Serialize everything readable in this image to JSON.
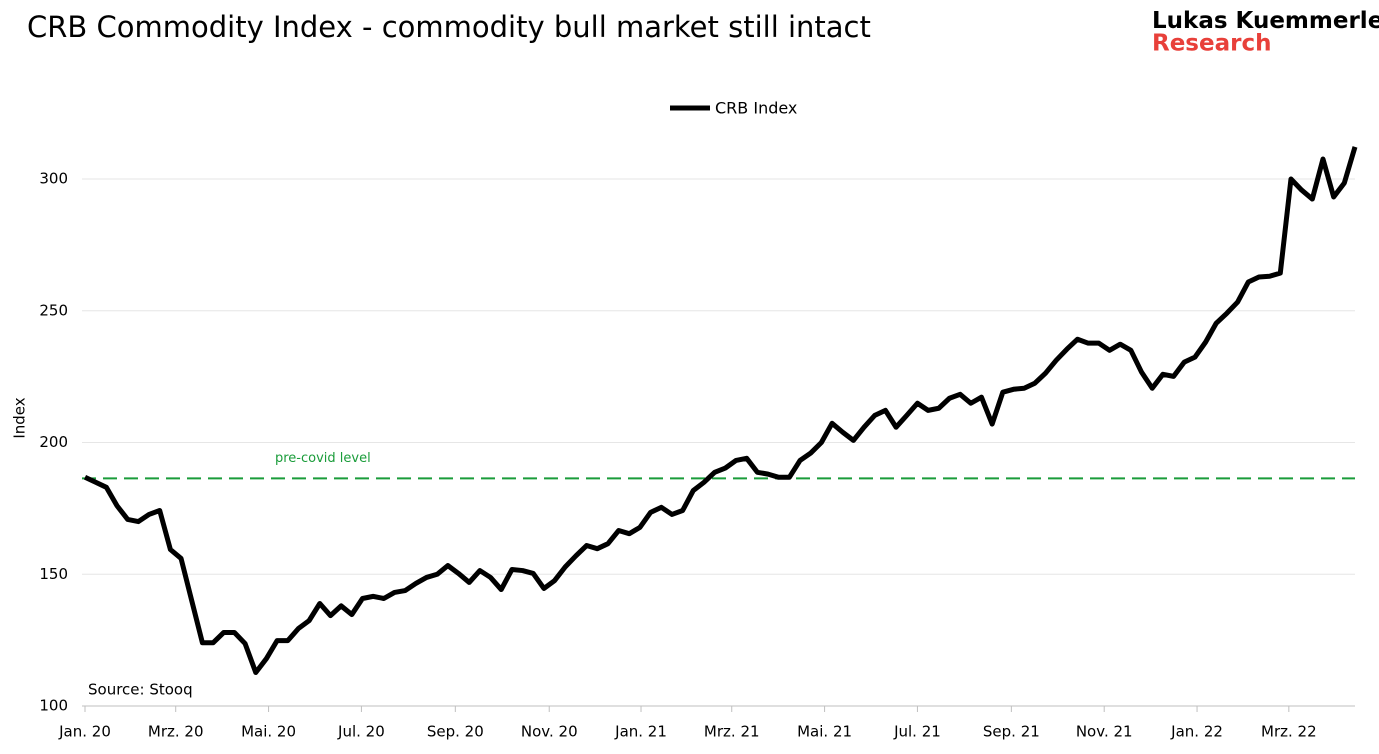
{
  "chart_data": {
    "type": "line",
    "title": "CRB Commodity Index - commodity bull market still intact",
    "brand": {
      "name": "Lukas Kuemmerle",
      "dot": ".",
      "sub": "Research"
    },
    "ylabel": "Index",
    "source": "Source: Stooq",
    "legend": "top",
    "grid": true,
    "series": [
      {
        "name": "CRB Index",
        "color": "#000000",
        "values": [
          186.8,
          184.9,
          183,
          176,
          170.8,
          170,
          172.7,
          174.2,
          159.4,
          156,
          140,
          124,
          124,
          127.9,
          127.9,
          123.7,
          112.7,
          118,
          124.8,
          124.8,
          129.4,
          132.4,
          138.9,
          134.3,
          138,
          134.7,
          140.8,
          141.6,
          140.8,
          143.1,
          143.8,
          146.5,
          148.8,
          150,
          153.3,
          150.3,
          146.9,
          151.4,
          148.8,
          144.2,
          151.8,
          151.4,
          150.3,
          144.6,
          147.6,
          152.8,
          157,
          160.9,
          159.7,
          161.6,
          166.6,
          165.4,
          167.8,
          173.5,
          175.4,
          172.7,
          174.2,
          181.8,
          184.9,
          188.7,
          190.3,
          193.2,
          194,
          188.7,
          188,
          186.8,
          186.8,
          193.2,
          196,
          200,
          207.3,
          203.9,
          200.8,
          205.8,
          210.3,
          212.2,
          205.8,
          210.3,
          214.9,
          212.2,
          213,
          216.8,
          218.3,
          214.9,
          217.2,
          207,
          219.1,
          220.2,
          220.6,
          222.5,
          226.3,
          231.2,
          235.4,
          239.2,
          237.7,
          237.7,
          235,
          237.3,
          235,
          226.7,
          220.6,
          225.9,
          225.1,
          230.5,
          232.4,
          238.1,
          245.3,
          249.1,
          253.3,
          260.9,
          262.8,
          263.1,
          264.3,
          300,
          295.8,
          292.4,
          307.6,
          293.2,
          298.5,
          312.2
        ]
      }
    ],
    "reference_line": {
      "label": "pre-covid level",
      "value": 186.4,
      "color": "#1a9c3a"
    },
    "xlim": [
      0,
      119
    ],
    "xticks": [
      {
        "value": 0,
        "label": "Jan. 20"
      },
      {
        "value": 8.5,
        "label": "Mrz. 20"
      },
      {
        "value": 17.2,
        "label": "Mai. 20"
      },
      {
        "value": 25.9,
        "label": "Jul. 20"
      },
      {
        "value": 34.7,
        "label": "Sep. 20"
      },
      {
        "value": 43.5,
        "label": "Nov. 20"
      },
      {
        "value": 52.1,
        "label": "Jan. 21"
      },
      {
        "value": 60.6,
        "label": "Mrz. 21"
      },
      {
        "value": 69.3,
        "label": "Mai. 21"
      },
      {
        "value": 78,
        "label": "Jul. 21"
      },
      {
        "value": 86.8,
        "label": "Sep. 21"
      },
      {
        "value": 95.5,
        "label": "Nov. 21"
      },
      {
        "value": 104.2,
        "label": "Jan. 22"
      },
      {
        "value": 112.8,
        "label": "Mrz. 22"
      }
    ],
    "ylim": [
      100,
      315
    ],
    "yticks": [
      100,
      150,
      200,
      250,
      300
    ]
  }
}
